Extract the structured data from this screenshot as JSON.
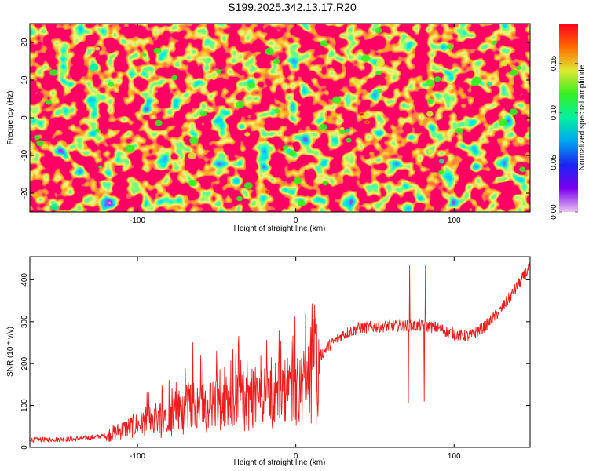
{
  "title": "S199.2025.342.13.17.R20",
  "chart_data": [
    {
      "type": "heatmap",
      "name": "spectrogram",
      "xlabel": "Height of straight line (km)",
      "ylabel": "Frequency (Hz)",
      "xlim": [
        -168,
        148
      ],
      "ylim": [
        -25,
        25
      ],
      "xticks": [
        -100,
        0,
        100
      ],
      "xtick_labels": [
        "-100",
        "0",
        "100"
      ],
      "yticks": [
        -20,
        -10,
        0,
        10,
        20
      ],
      "ytick_labels": [
        "-20",
        "-10",
        "0",
        "10",
        "20"
      ],
      "colorbar": {
        "label": "Normalized spectral amplitude",
        "range": [
          0,
          0.19
        ],
        "ticks": [
          0.0,
          0.05,
          0.1,
          0.15
        ],
        "tick_labels": [
          "0.00",
          "0.05",
          "0.10",
          "0.15"
        ],
        "colormap": [
          "#e9c4f1",
          "#7a00f0",
          "#1b24f2",
          "#00a6f0",
          "#00f2a0",
          "#32ef20",
          "#dfe830",
          "#ff6a00",
          "#ff0020"
        ]
      },
      "background_level": 0.02,
      "peak_level": 0.19
    },
    {
      "type": "line",
      "name": "snr",
      "xlabel": "Height of straight line (km)",
      "ylabel": "SNR (10 * v/v)",
      "xlim": [
        -168,
        148
      ],
      "ylim": [
        0,
        455
      ],
      "xticks": [
        -100,
        0,
        100
      ],
      "xtick_labels": [
        "-100",
        "0",
        "100"
      ],
      "yticks": [
        0,
        100,
        200,
        300,
        400
      ],
      "ytick_labels": [
        "0",
        "100",
        "200",
        "300",
        "400"
      ],
      "color": "#ee1c1c",
      "trend": {
        "x": [
          -168,
          -140,
          -120,
          -100,
          -80,
          -60,
          -40,
          -20,
          0,
          10,
          20,
          30,
          40,
          60,
          80,
          90,
          100,
          110,
          120,
          130,
          140,
          148
        ],
        "y": [
          18,
          20,
          28,
          55,
          85,
          105,
          115,
          125,
          150,
          190,
          240,
          270,
          285,
          290,
          290,
          285,
          270,
          265,
          290,
          330,
          385,
          430
        ]
      },
      "spikes": {
        "x": [
          -93,
          -80,
          -65,
          -60,
          -50,
          -36,
          -22,
          -11,
          11,
          13,
          71,
          72,
          81,
          82
        ],
        "y": [
          130,
          160,
          250,
          220,
          230,
          265,
          220,
          200,
          305,
          55,
          105,
          435,
          110,
          435
        ]
      }
    }
  ]
}
